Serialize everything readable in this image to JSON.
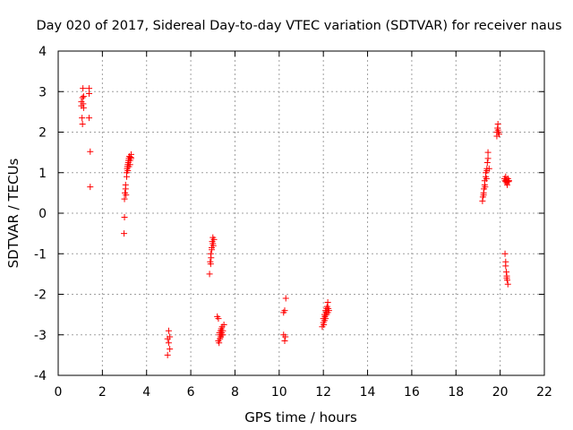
{
  "chart_data": {
    "type": "scatter",
    "title": "Day 020 of 2017, Sidereal Day-to-day VTEC variation (SDTVAR) for receiver naus",
    "xlabel": "GPS time / hours",
    "ylabel": "SDTVAR / TECUs",
    "xlim": [
      0,
      22
    ],
    "ylim": [
      -4,
      4
    ],
    "xticks": [
      0,
      2,
      4,
      6,
      8,
      10,
      12,
      14,
      16,
      18,
      20,
      22
    ],
    "yticks": [
      -4,
      -3,
      -2,
      -1,
      0,
      1,
      2,
      3,
      4
    ],
    "grid": true,
    "marker": "+",
    "color": "#ff0000",
    "series": [
      {
        "name": "naus",
        "x": [
          1.05,
          1.05,
          1.08,
          1.1,
          1.1,
          1.12,
          1.13,
          1.15,
          1.15,
          1.4,
          1.4,
          1.4,
          1.45,
          1.45,
          2.98,
          3.0,
          3.0,
          3.02,
          3.05,
          3.05,
          3.07,
          3.1,
          3.1,
          3.12,
          3.13,
          3.15,
          3.15,
          3.17,
          3.18,
          3.2,
          3.2,
          3.22,
          3.25,
          3.25,
          3.28,
          3.3,
          3.3,
          4.95,
          4.95,
          5.0,
          5.0,
          5.05,
          5.05,
          6.85,
          6.88,
          6.9,
          6.9,
          6.92,
          6.95,
          6.95,
          6.97,
          7.0,
          7.0,
          7.02,
          7.05,
          7.2,
          7.25,
          7.25,
          7.28,
          7.3,
          7.3,
          7.32,
          7.35,
          7.35,
          7.38,
          7.4,
          7.4,
          7.42,
          7.45,
          7.45,
          7.5,
          10.2,
          10.2,
          10.25,
          10.25,
          10.28,
          10.3,
          11.95,
          12.0,
          12.0,
          12.02,
          12.05,
          12.05,
          12.07,
          12.1,
          12.1,
          12.12,
          12.15,
          12.15,
          12.17,
          12.2,
          12.2,
          12.22,
          12.25,
          19.2,
          19.22,
          19.25,
          19.25,
          19.27,
          19.3,
          19.3,
          19.32,
          19.35,
          19.35,
          19.38,
          19.4,
          19.4,
          19.42,
          19.45,
          19.45,
          19.5,
          19.85,
          19.85,
          19.88,
          19.9,
          19.9,
          19.92,
          19.95,
          20.2,
          20.22,
          20.25,
          20.25,
          20.28,
          20.3,
          20.3,
          20.32,
          20.35,
          20.35,
          20.38,
          20.4,
          20.22,
          20.25,
          20.25,
          20.28,
          20.3,
          20.3,
          20.32,
          20.35
        ],
        "y": [
          2.65,
          2.75,
          2.35,
          2.85,
          2.2,
          3.08,
          2.7,
          2.88,
          2.6,
          3.08,
          2.95,
          2.35,
          1.52,
          0.65,
          -0.5,
          -0.1,
          0.35,
          0.5,
          0.6,
          0.7,
          0.45,
          0.9,
          1.0,
          1.1,
          1.15,
          1.2,
          1.05,
          1.25,
          1.3,
          1.35,
          1.15,
          1.4,
          1.3,
          1.2,
          1.38,
          1.45,
          1.35,
          -3.5,
          -3.1,
          -2.9,
          -3.2,
          -3.35,
          -3.05,
          -1.5,
          -1.2,
          -1.25,
          -1.0,
          -1.1,
          -0.85,
          -0.9,
          -0.7,
          -0.75,
          -0.6,
          -0.8,
          -0.65,
          -2.55,
          -2.6,
          -3.15,
          -3.2,
          -2.95,
          -3.0,
          -3.1,
          -2.9,
          -3.05,
          -2.85,
          -2.95,
          -3.0,
          -2.8,
          -2.9,
          -3.0,
          -2.75,
          -2.45,
          -3.0,
          -3.15,
          -2.4,
          -3.05,
          -2.1,
          -2.8,
          -2.7,
          -2.6,
          -2.75,
          -2.5,
          -2.65,
          -2.55,
          -2.4,
          -2.6,
          -2.45,
          -2.35,
          -2.5,
          -2.3,
          -2.2,
          -2.45,
          -2.35,
          -2.4,
          0.3,
          0.4,
          0.5,
          0.45,
          0.6,
          0.7,
          0.8,
          0.65,
          0.9,
          1.0,
          0.85,
          1.05,
          1.1,
          1.25,
          1.35,
          1.5,
          1.1,
          1.9,
          2.0,
          2.1,
          2.05,
          2.2,
          2.0,
          1.95,
          0.85,
          0.8,
          0.78,
          0.9,
          0.82,
          0.75,
          0.8,
          0.7,
          0.85,
          0.8,
          0.78,
          0.8,
          -1.0,
          -1.2,
          -1.3,
          -1.45,
          -1.55,
          -1.6,
          -1.65,
          -1.75
        ]
      }
    ]
  }
}
